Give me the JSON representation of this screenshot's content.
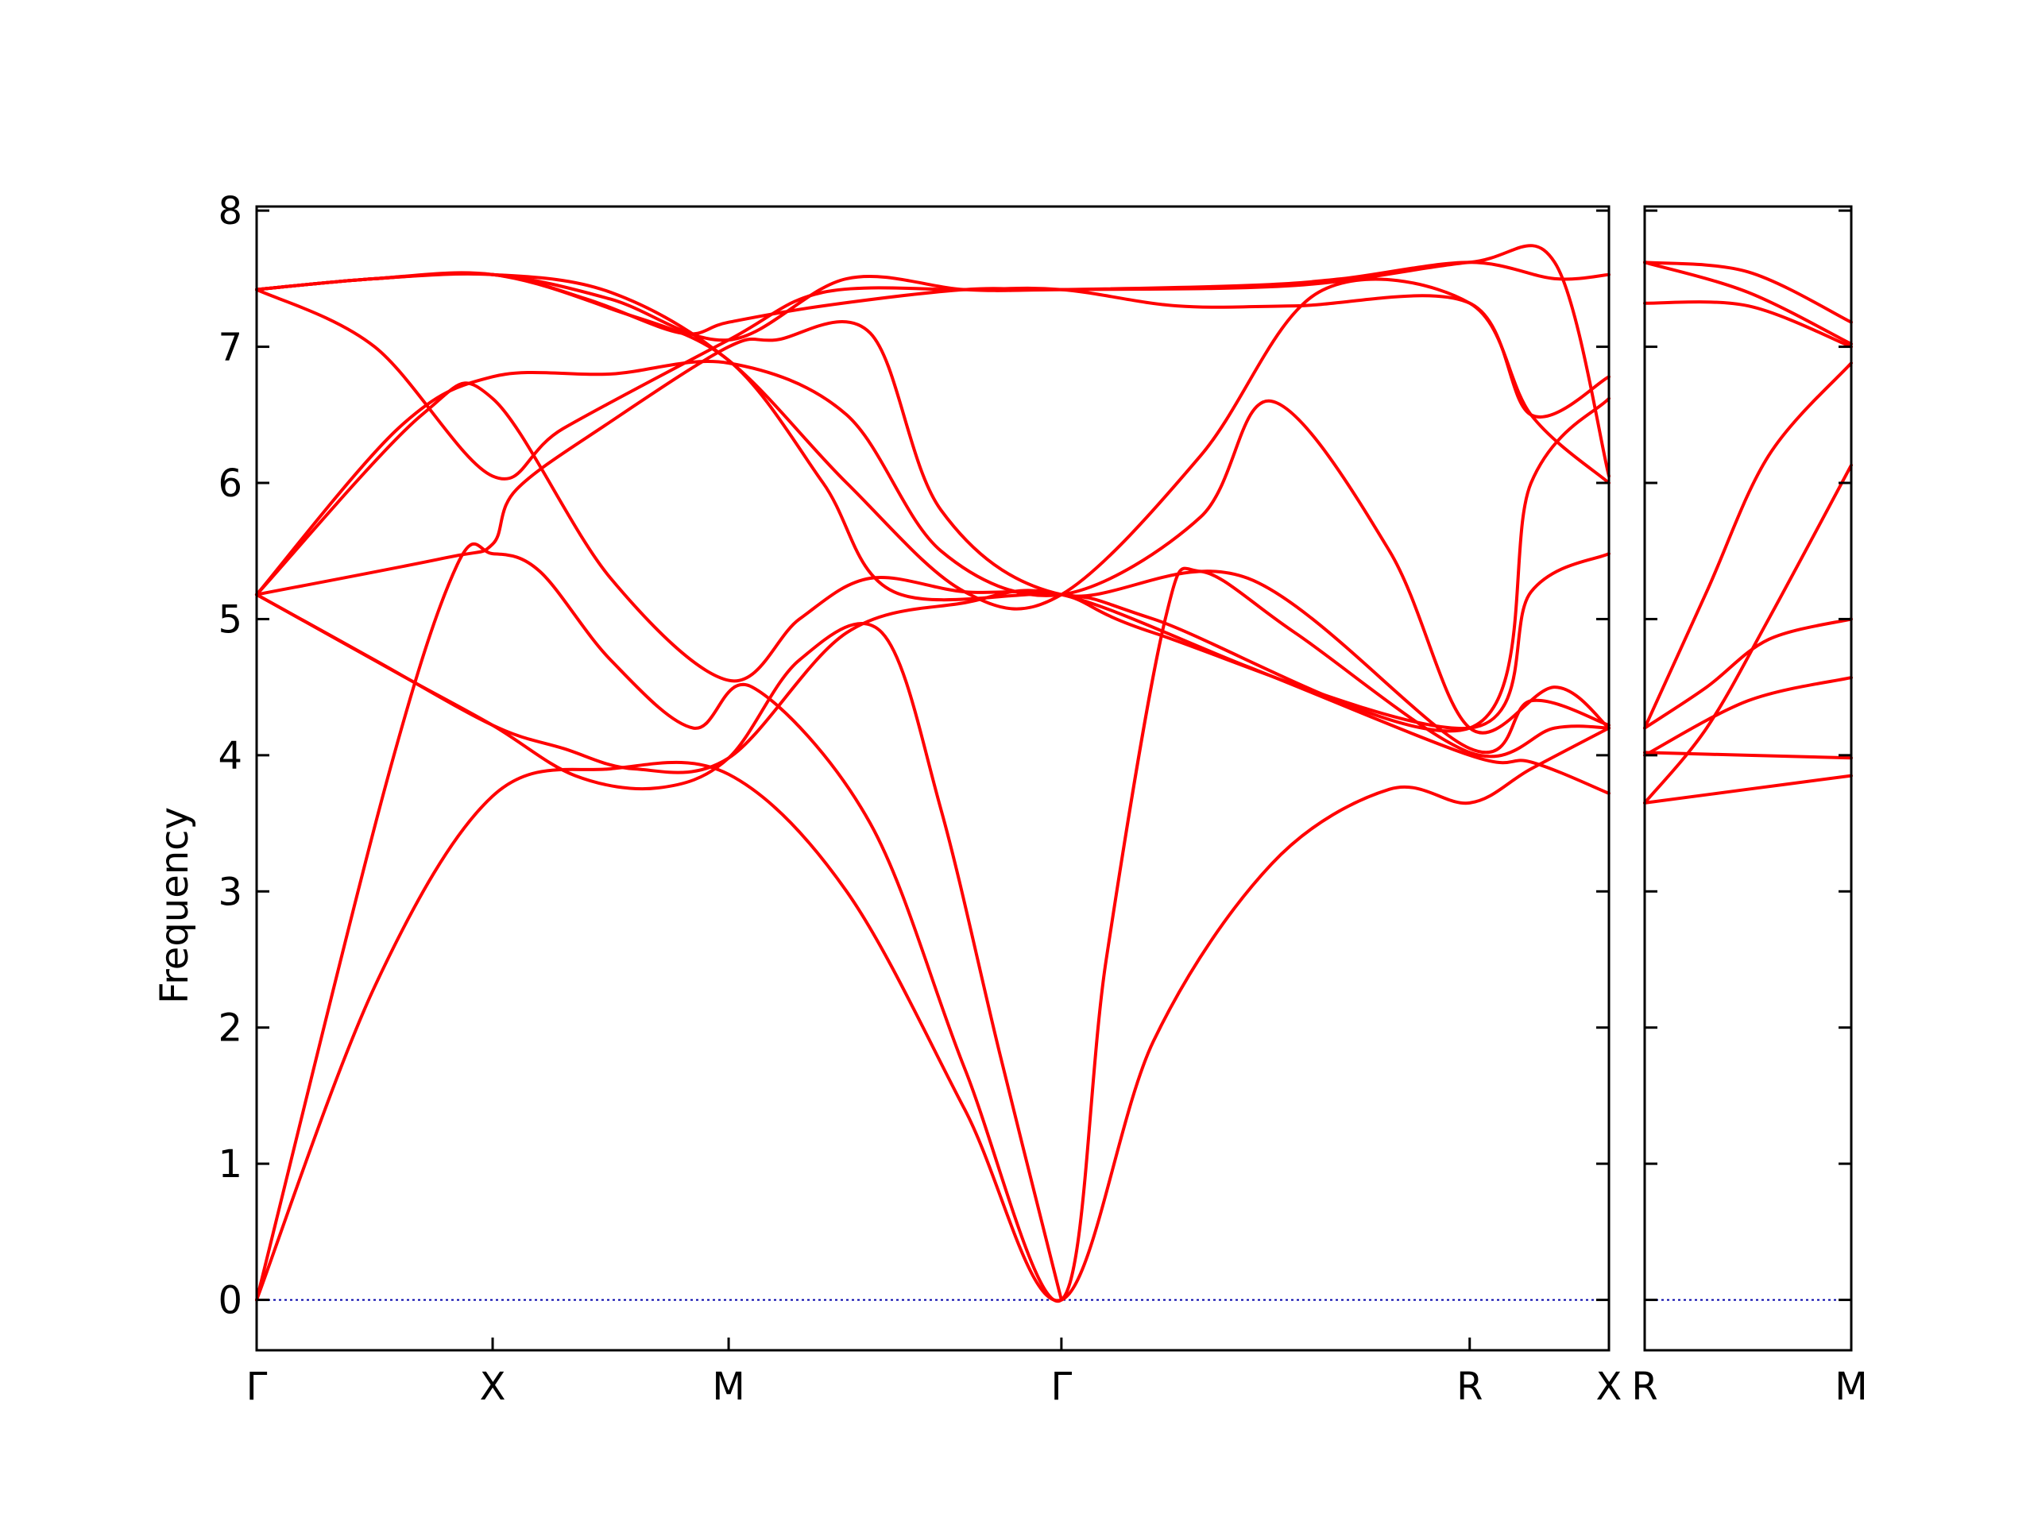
{
  "chart_data": {
    "type": "line",
    "title": "",
    "ylabel": "Frequency",
    "ylim": [
      -0.37,
      8.03
    ],
    "yticks": [
      0,
      1,
      2,
      3,
      4,
      5,
      6,
      7,
      8
    ],
    "grid": false,
    "legend": "none",
    "line_color": "#ff0000",
    "zero_line_color": "#0000aa",
    "panels": [
      {
        "name": "main",
        "xlim": [
          0,
          5.73
        ],
        "ticks": [
          {
            "label": "Γ",
            "x": 0
          },
          {
            "label": "X",
            "x": 1
          },
          {
            "label": "M",
            "x": 2
          },
          {
            "label": "Γ",
            "x": 3.41
          },
          {
            "label": "R",
            "x": 5.14
          },
          {
            "label": "X",
            "x": 5.73
          }
        ],
        "bands": [
          [
            [
              0,
              0
            ],
            [
              0.5,
              2.3
            ],
            [
              1,
              3.7
            ],
            [
              1.5,
              3.9
            ],
            [
              2,
              3.86
            ],
            [
              2.5,
              3.0
            ],
            [
              3,
              1.4
            ],
            [
              3.41,
              0
            ],
            [
              3.8,
              1.9
            ],
            [
              4.3,
              3.2
            ],
            [
              4.8,
              3.75
            ],
            [
              5.14,
              3.65
            ],
            [
              5.4,
              3.9
            ],
            [
              5.73,
              4.2
            ]
          ],
          [
            [
              0,
              0
            ],
            [
              0.55,
              3.8
            ],
            [
              0.85,
              5.4
            ],
            [
              1,
              5.48
            ],
            [
              1.2,
              5.35
            ],
            [
              1.5,
              4.7
            ],
            [
              1.85,
              4.2
            ],
            [
              2.1,
              4.5
            ],
            [
              2.6,
              3.5
            ],
            [
              3,
              1.7
            ],
            [
              3.41,
              0
            ],
            [
              3.6,
              2.5
            ],
            [
              3.85,
              5.0
            ],
            [
              4.0,
              5.35
            ],
            [
              4.4,
              4.9
            ],
            [
              5.14,
              4.02
            ],
            [
              5.5,
              4.2
            ],
            [
              5.73,
              4.2
            ]
          ],
          [
            [
              0,
              5.18
            ],
            [
              0.6,
              4.6
            ],
            [
              1,
              4.22
            ],
            [
              1.35,
              3.85
            ],
            [
              1.7,
              3.76
            ],
            [
              2,
              3.98
            ],
            [
              2.3,
              4.7
            ],
            [
              2.65,
              4.9
            ],
            [
              2.9,
              3.6
            ],
            [
              3.15,
              1.8
            ],
            [
              3.41,
              0
            ]
          ],
          [
            [
              0,
              5.18
            ],
            [
              0.5,
              4.7
            ],
            [
              1,
              4.22
            ],
            [
              1.3,
              4.05
            ],
            [
              1.6,
              3.9
            ],
            [
              2,
              3.98
            ],
            [
              2.5,
              4.9
            ],
            [
              3.0,
              5.12
            ],
            [
              3.41,
              5.18
            ],
            [
              4.2,
              4.65
            ],
            [
              5.14,
              4.0
            ],
            [
              5.4,
              3.95
            ],
            [
              5.73,
              3.72
            ]
          ],
          [
            [
              0,
              5.18
            ],
            [
              0.8,
              5.45
            ],
            [
              1,
              5.55
            ],
            [
              1.1,
              5.95
            ],
            [
              1.5,
              6.45
            ],
            [
              2,
              7.0
            ],
            [
              2.2,
              7.05
            ],
            [
              2.6,
              7.1
            ],
            [
              2.9,
              5.8
            ],
            [
              3.41,
              5.18
            ],
            [
              4.2,
              5.3
            ],
            [
              5.14,
              4.05
            ],
            [
              5.4,
              4.4
            ],
            [
              5.73,
              4.22
            ]
          ],
          [
            [
              0,
              5.18
            ],
            [
              0.6,
              6.4
            ],
            [
              1,
              6.78
            ],
            [
              1.5,
              6.8
            ],
            [
              2,
              6.88
            ],
            [
              2.5,
              6.5
            ],
            [
              2.9,
              5.5
            ],
            [
              3.41,
              5.18
            ],
            [
              4.0,
              5.75
            ],
            [
              4.3,
              6.6
            ],
            [
              4.8,
              5.5
            ],
            [
              5.14,
              4.2
            ],
            [
              5.5,
              4.5
            ],
            [
              5.73,
              4.2
            ]
          ],
          [
            [
              0,
              5.18
            ],
            [
              0.7,
              6.5
            ],
            [
              1,
              6.62
            ],
            [
              1.5,
              5.3
            ],
            [
              2,
              4.55
            ],
            [
              2.3,
              5.0
            ],
            [
              2.6,
              5.3
            ],
            [
              3.0,
              5.2
            ],
            [
              3.41,
              5.18
            ],
            [
              3.8,
              4.9
            ],
            [
              5.14,
              4.2
            ],
            [
              5.4,
              5.2
            ],
            [
              5.73,
              5.48
            ]
          ],
          [
            [
              0,
              7.42
            ],
            [
              0.5,
              7.0
            ],
            [
              1,
              6.05
            ],
            [
              1.3,
              6.4
            ],
            [
              2,
              7.05
            ],
            [
              2.4,
              7.4
            ],
            [
              3,
              7.42
            ],
            [
              3.41,
              7.42
            ],
            [
              3.9,
              7.3
            ],
            [
              4.4,
              7.3
            ],
            [
              5.14,
              7.32
            ],
            [
              5.4,
              6.5
            ],
            [
              5.73,
              6.78
            ]
          ],
          [
            [
              0,
              7.42
            ],
            [
              0.5,
              7.5
            ],
            [
              1,
              7.53
            ],
            [
              1.5,
              7.28
            ],
            [
              2,
              6.9
            ],
            [
              2.4,
              6.0
            ],
            [
              2.7,
              5.2
            ],
            [
              3.41,
              5.18
            ],
            [
              3.8,
              5.0
            ],
            [
              5.14,
              4.2
            ],
            [
              5.4,
              6.0
            ],
            [
              5.73,
              6.62
            ]
          ],
          [
            [
              0,
              7.42
            ],
            [
              0.5,
              7.5
            ],
            [
              1,
              7.53
            ],
            [
              1.5,
              7.4
            ],
            [
              2,
              6.9
            ],
            [
              2.5,
              6.0
            ],
            [
              3.0,
              5.2
            ],
            [
              3.41,
              5.18
            ],
            [
              4.0,
              6.2
            ],
            [
              4.5,
              7.4
            ],
            [
              5.14,
              7.32
            ],
            [
              5.4,
              6.5
            ],
            [
              5.73,
              6.0
            ]
          ],
          [
            [
              0,
              7.42
            ],
            [
              0.5,
              7.5
            ],
            [
              1,
              7.53
            ],
            [
              1.4,
              7.35
            ],
            [
              1.8,
              7.1
            ],
            [
              2,
              7.18
            ],
            [
              2.4,
              7.3
            ],
            [
              3.0,
              7.42
            ],
            [
              3.41,
              7.42
            ],
            [
              4.2,
              7.45
            ],
            [
              4.6,
              7.5
            ],
            [
              5.14,
              7.62
            ],
            [
              5.5,
              7.5
            ],
            [
              5.73,
              7.53
            ]
          ],
          [
            [
              0,
              7.42
            ],
            [
              0.5,
              7.5
            ],
            [
              1,
              7.53
            ],
            [
              1.5,
              7.35
            ],
            [
              2,
              7.05
            ],
            [
              2.5,
              7.5
            ],
            [
              3,
              7.42
            ],
            [
              3.41,
              7.42
            ],
            [
              4.4,
              7.45
            ],
            [
              5.14,
              7.62
            ],
            [
              5.5,
              7.62
            ],
            [
              5.73,
              6.05
            ]
          ]
        ]
      },
      {
        "name": "side",
        "xlim": [
          0,
          1
        ],
        "ticks": [
          {
            "label": "R",
            "x": 0
          },
          {
            "label": "M",
            "x": 1
          }
        ],
        "bands": [
          [
            [
              0,
              3.65
            ],
            [
              0.5,
              3.75
            ],
            [
              1,
              3.85
            ]
          ],
          [
            [
              0,
              4.02
            ],
            [
              0.5,
              4.0
            ],
            [
              1,
              3.98
            ]
          ],
          [
            [
              0,
              3.65
            ],
            [
              0.3,
              4.2
            ],
            [
              0.6,
              5.0
            ],
            [
              1,
              6.13
            ]
          ],
          [
            [
              0,
              4.0
            ],
            [
              0.5,
              4.4
            ],
            [
              1,
              4.57
            ]
          ],
          [
            [
              0,
              4.2
            ],
            [
              0.3,
              4.5
            ],
            [
              0.6,
              4.85
            ],
            [
              1,
              5.0
            ]
          ],
          [
            [
              0,
              4.2
            ],
            [
              0.3,
              5.2
            ],
            [
              0.6,
              6.2
            ],
            [
              1,
              6.88
            ]
          ],
          [
            [
              0,
              7.32
            ],
            [
              0.5,
              7.3
            ],
            [
              1,
              7.0
            ]
          ],
          [
            [
              0,
              7.62
            ],
            [
              0.5,
              7.4
            ],
            [
              1,
              7.02
            ]
          ],
          [
            [
              0,
              7.62
            ],
            [
              0.5,
              7.55
            ],
            [
              1,
              7.18
            ]
          ]
        ]
      }
    ]
  }
}
